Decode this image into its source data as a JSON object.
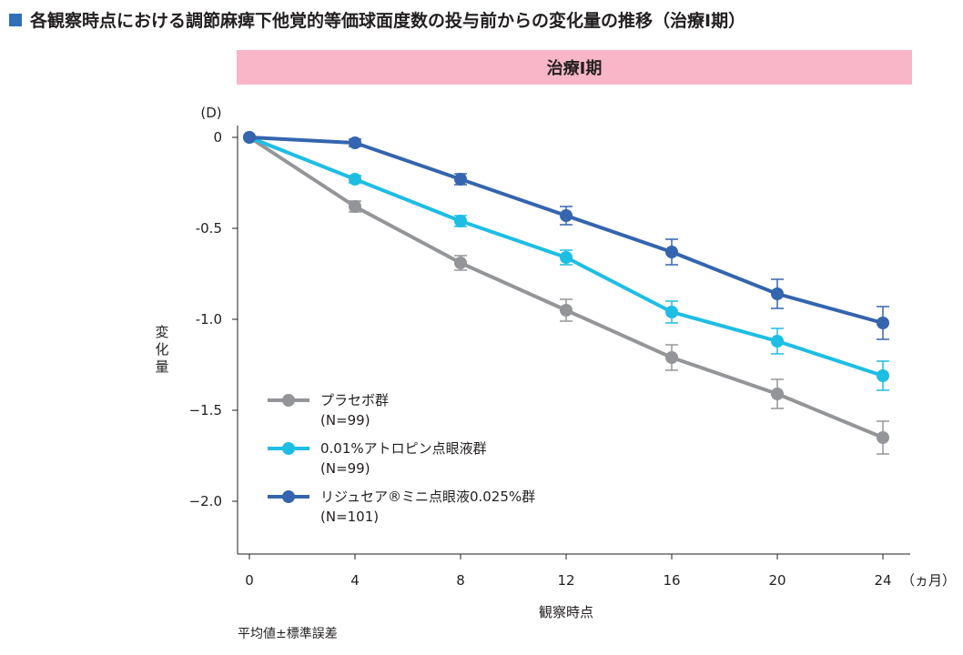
{
  "header": {
    "title": "各観察時点における調節麻痺下他覚的等価球面度数の投与前からの変化量の推移（治療Ⅰ期）",
    "banner": "治療Ⅰ期",
    "accent_color": "#2e6fb7",
    "banner_color": "#f8b6c8"
  },
  "footnote": "平均値±標準誤差",
  "chart_data": {
    "type": "line",
    "x": [
      0,
      4,
      8,
      12,
      16,
      20,
      24
    ],
    "x_ticks": [
      "0",
      "4",
      "8",
      "12",
      "16",
      "20",
      "24"
    ],
    "x_unit": "（ヵ月）",
    "xlabel": "観察時点",
    "ylabel": "変化量",
    "y_unit": "(D)",
    "ylim": [
      -2.3,
      0.05
    ],
    "y_ticks": [
      {
        "value": 0,
        "label": "0"
      },
      {
        "value": -0.5,
        "label": "-0.5"
      },
      {
        "value": -1.0,
        "label": "-1.0"
      },
      {
        "value": -1.5,
        "label": "−1.5"
      },
      {
        "value": -2.0,
        "label": "−2.0"
      }
    ],
    "series": [
      {
        "name": "プラセボ群",
        "n": "(N=99)",
        "color": "#939598",
        "values": [
          0,
          -0.38,
          -0.69,
          -0.95,
          -1.21,
          -1.41,
          -1.65
        ],
        "errors": [
          0,
          0.03,
          0.04,
          0.06,
          0.07,
          0.08,
          0.09
        ]
      },
      {
        "name": "0.01%アトロピン点眼液群",
        "n": "(N=99)",
        "color": "#1ebde4",
        "values": [
          0,
          -0.23,
          -0.46,
          -0.66,
          -0.96,
          -1.12,
          -1.31
        ],
        "errors": [
          0,
          0.02,
          0.03,
          0.04,
          0.06,
          0.07,
          0.08
        ]
      },
      {
        "name": "リジュセア®ミニ点眼液0.025%群",
        "n": "(N=101)",
        "color": "#3465ae",
        "values": [
          0,
          -0.03,
          -0.23,
          -0.43,
          -0.63,
          -0.86,
          -1.02
        ],
        "errors": [
          0,
          0.02,
          0.03,
          0.05,
          0.07,
          0.08,
          0.09
        ]
      }
    ],
    "legend_position": "bottom-left",
    "grid": false
  }
}
